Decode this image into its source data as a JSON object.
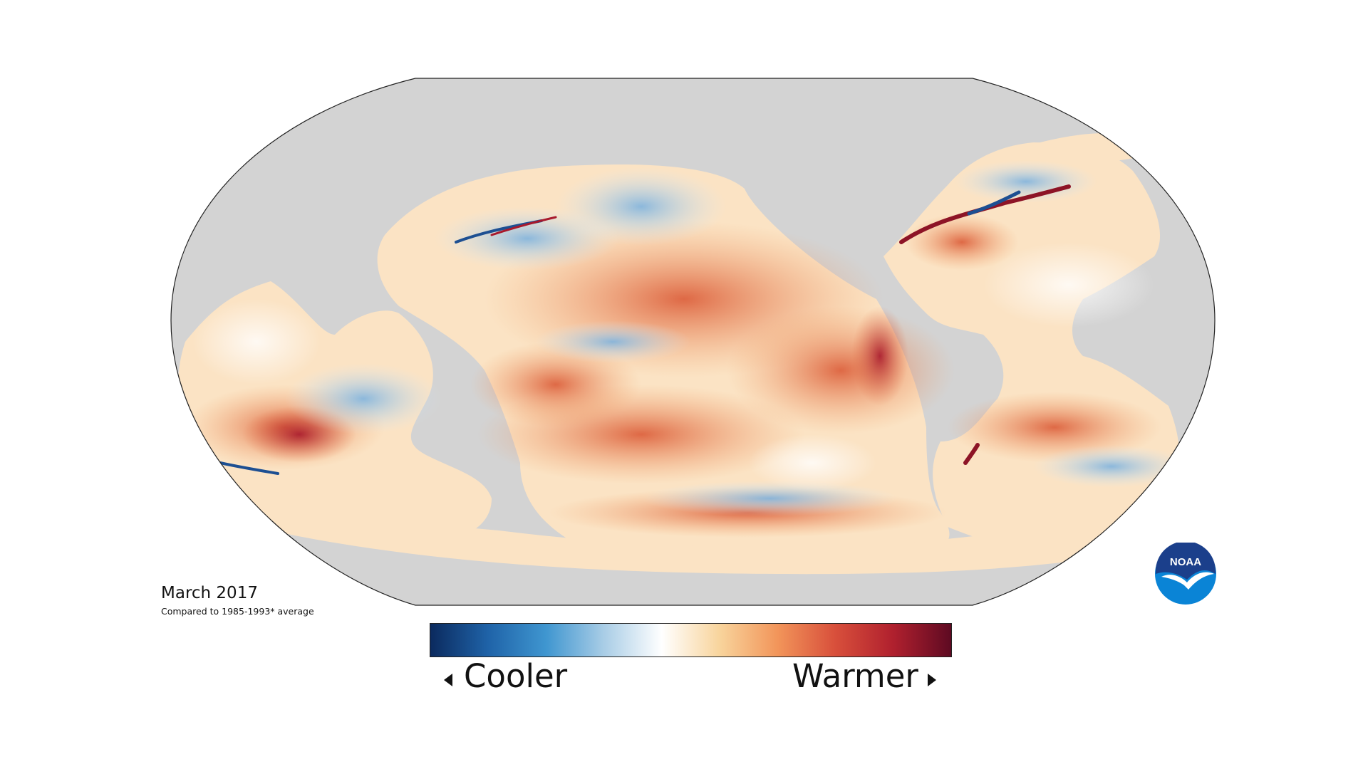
{
  "map": {
    "date_label": "March 2017",
    "comparison_label": "Compared to 1985-1993* average",
    "colors": {
      "land": "#d3d3d3",
      "ocean_base": "#fbe3c4",
      "outline": "#222222"
    }
  },
  "legend": {
    "cooler_label": "Cooler",
    "warmer_label": "Warmer",
    "gradient_stops": [
      "#0b2a5e",
      "#1f63a8",
      "#3f96d0",
      "#a9cde6",
      "#ffffff",
      "#f8d49c",
      "#f2955a",
      "#d84f3b",
      "#b0202e",
      "#5e0a22"
    ]
  },
  "logo": {
    "text": "NOAA",
    "colors": {
      "top": "#1b3f8b",
      "bottom": "#0a84d6",
      "bird": "#ffffff"
    }
  }
}
